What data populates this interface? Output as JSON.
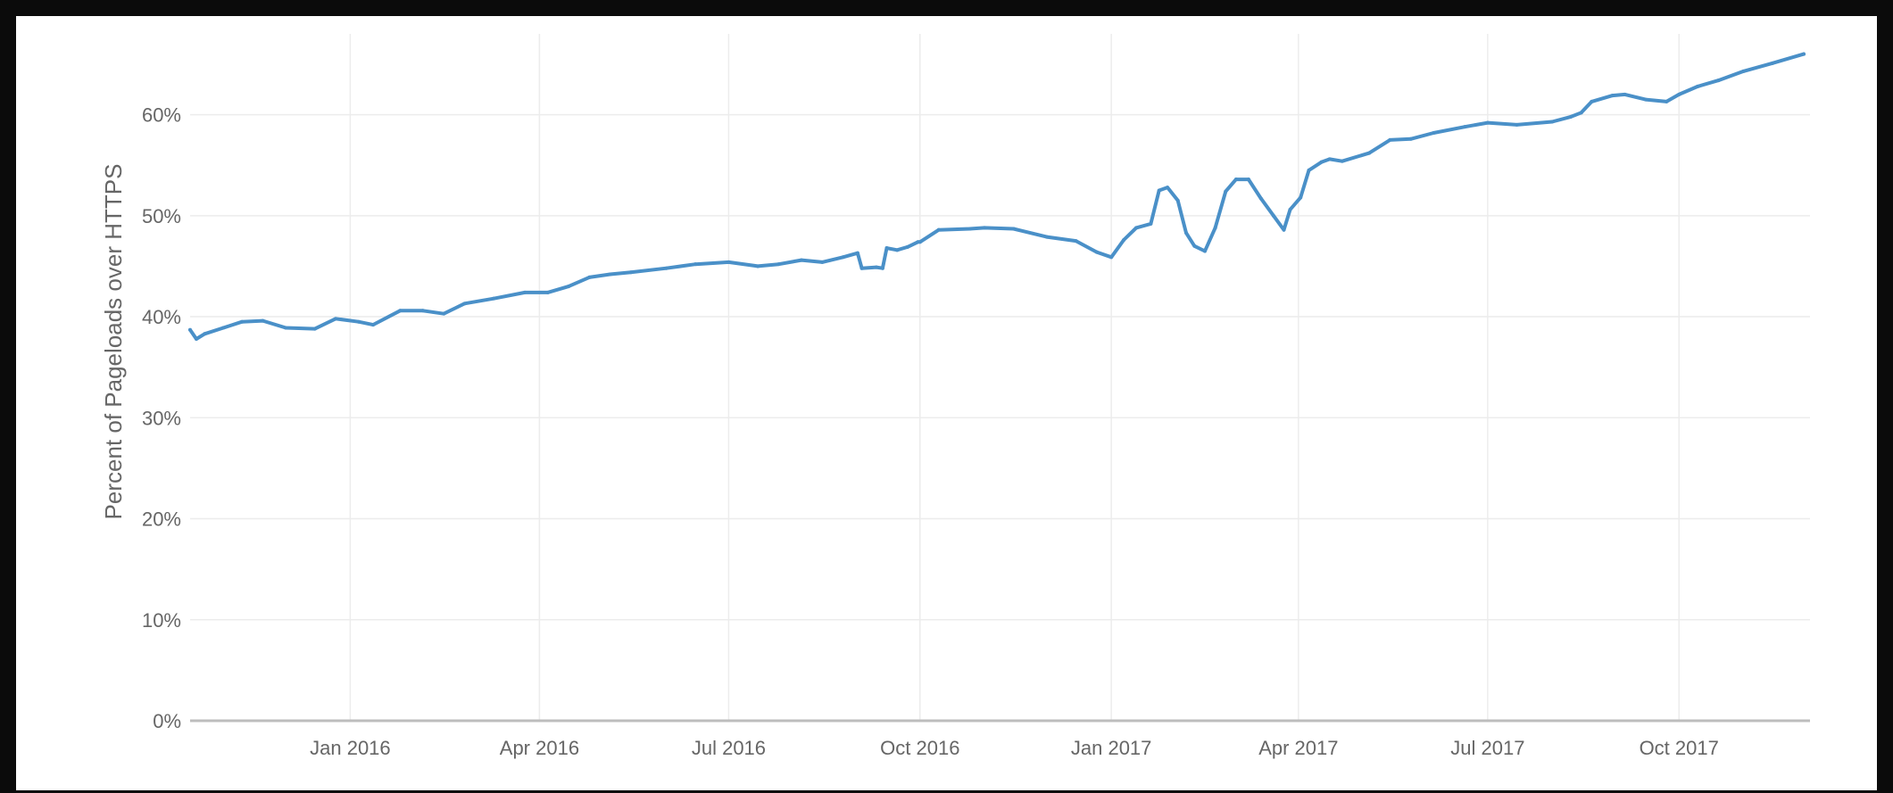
{
  "chart_data": {
    "type": "line",
    "title": "",
    "xlabel": "",
    "ylabel": "Percent of Pageloads over HTTPS",
    "x_tick_labels": [
      "Jan 2016",
      "Apr 2016",
      "Jul 2016",
      "Oct 2016",
      "Jan 2017",
      "Apr 2017",
      "Jul 2017",
      "Oct 2017"
    ],
    "x_ticks": [
      "2016-01-01",
      "2016-04-01",
      "2016-07-01",
      "2016-10-01",
      "2017-01-01",
      "2017-04-01",
      "2017-07-01",
      "2017-10-01"
    ],
    "y_tick_labels": [
      "0%",
      "10%",
      "20%",
      "30%",
      "40%",
      "50%",
      "60%"
    ],
    "y_ticks": [
      0,
      10,
      20,
      30,
      40,
      50,
      60
    ],
    "xlim": [
      "2015-10-16",
      "2017-12-03"
    ],
    "ylim": [
      0,
      68
    ],
    "grid": true,
    "legend": "none",
    "series": [
      {
        "color": "#4a90c8",
        "x": [
          "2015-10-16",
          "2015-10-19",
          "2015-10-23",
          "2015-11-01",
          "2015-11-10",
          "2015-11-20",
          "2015-12-01",
          "2015-12-15",
          "2015-12-25",
          "2016-01-05",
          "2016-01-12",
          "2016-01-25",
          "2016-02-05",
          "2016-02-15",
          "2016-02-25",
          "2016-03-10",
          "2016-03-25",
          "2016-04-05",
          "2016-04-15",
          "2016-04-25",
          "2016-05-05",
          "2016-05-15",
          "2016-06-01",
          "2016-06-15",
          "2016-07-01",
          "2016-07-15",
          "2016-07-25",
          "2016-08-05",
          "2016-08-15",
          "2016-08-25",
          "2016-09-01",
          "2016-09-03",
          "2016-09-10",
          "2016-09-13",
          "2016-09-15",
          "2016-09-20",
          "2016-09-25",
          "2016-09-30",
          "2016-10-01",
          "2016-10-10",
          "2016-10-25",
          "2016-11-01",
          "2016-11-15",
          "2016-12-01",
          "2016-12-15",
          "2016-12-25",
          "2017-01-01",
          "2017-01-07",
          "2017-01-13",
          "2017-01-20",
          "2017-01-24",
          "2017-01-28",
          "2017-02-02",
          "2017-02-06",
          "2017-02-10",
          "2017-02-15",
          "2017-02-20",
          "2017-02-25",
          "2017-03-02",
          "2017-03-08",
          "2017-03-14",
          "2017-03-20",
          "2017-03-25",
          "2017-03-28",
          "2017-04-02",
          "2017-04-06",
          "2017-04-12",
          "2017-04-16",
          "2017-04-22",
          "2017-05-05",
          "2017-05-15",
          "2017-05-25",
          "2017-06-05",
          "2017-06-20",
          "2017-07-01",
          "2017-07-15",
          "2017-08-01",
          "2017-08-10",
          "2017-08-15",
          "2017-08-20",
          "2017-08-30",
          "2017-09-05",
          "2017-09-15",
          "2017-09-25",
          "2017-10-01",
          "2017-10-10",
          "2017-10-20",
          "2017-11-01",
          "2017-11-15",
          "2017-11-30"
        ],
        "y": [
          38.7,
          37.8,
          38.3,
          38.9,
          39.5,
          39.6,
          38.9,
          38.8,
          39.8,
          39.5,
          39.2,
          40.6,
          40.6,
          40.3,
          41.3,
          41.8,
          42.4,
          42.4,
          43.0,
          43.9,
          44.2,
          44.4,
          44.8,
          45.2,
          45.4,
          45.0,
          45.2,
          45.6,
          45.4,
          45.9,
          46.3,
          44.8,
          44.9,
          44.8,
          46.8,
          46.6,
          46.9,
          47.4,
          47.4,
          48.6,
          48.7,
          48.8,
          48.7,
          47.9,
          47.5,
          46.4,
          45.9,
          47.6,
          48.8,
          49.2,
          52.5,
          52.8,
          51.5,
          48.3,
          47.0,
          46.5,
          48.8,
          52.4,
          53.6,
          53.6,
          51.7,
          50.0,
          48.6,
          50.6,
          51.8,
          54.5,
          55.3,
          55.6,
          55.4,
          56.2,
          57.5,
          57.6,
          58.2,
          58.8,
          59.2,
          59.0,
          59.3,
          59.8,
          60.2,
          61.3,
          61.9,
          62.0,
          61.5,
          61.3,
          62.0,
          62.8,
          63.4,
          64.3,
          65.1,
          66.0
        ]
      }
    ]
  }
}
